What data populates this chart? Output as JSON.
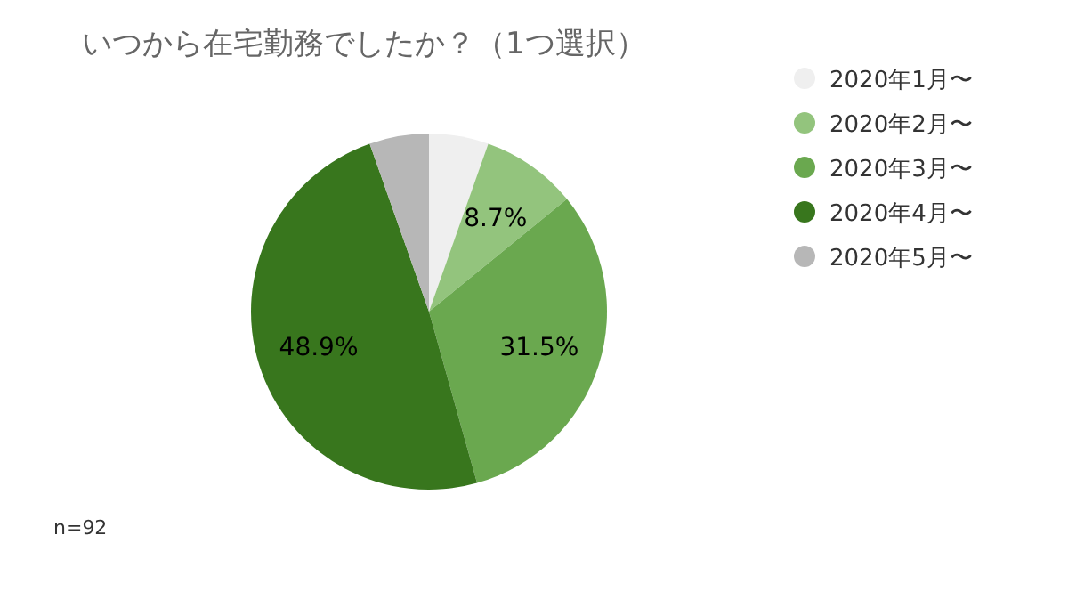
{
  "chart_data": {
    "type": "pie",
    "title": "いつから在宅勤務でしたか？（1つ選択）",
    "categories": [
      "2020年1月〜",
      "2020年2月〜",
      "2020年3月〜",
      "2020年4月〜",
      "2020年5月〜"
    ],
    "values": [
      5.4,
      8.7,
      31.5,
      48.9,
      5.4
    ],
    "value_labels": [
      null,
      "8.7%",
      "31.5%",
      "48.9%",
      null
    ],
    "colors": [
      "#efefef",
      "#93c47d",
      "#6aa84f",
      "#38761d",
      "#b7b7b7"
    ],
    "legend": "top right",
    "annotations": [
      "n=92"
    ]
  }
}
